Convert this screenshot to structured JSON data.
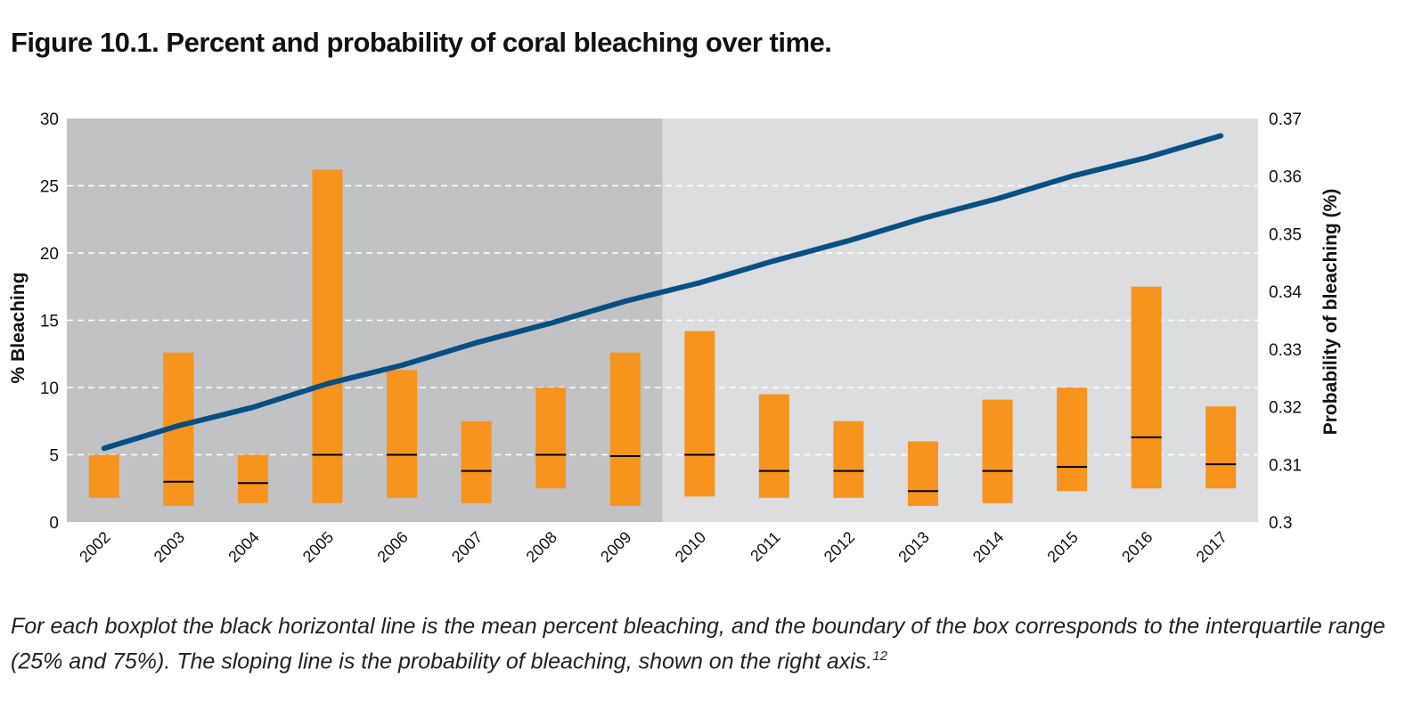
{
  "figure": {
    "title": "Figure 10.1. Percent and probability of coral bleaching over time.",
    "caption": "For each boxplot the black horizontal line is the mean percent bleaching, and the boundary of the box corresponds to the interquartile range (25% and 75%). The sloping line is the probability of bleaching, shown on the right axis.",
    "caption_ref": "12"
  },
  "chart_data": {
    "type": "boxplot+line",
    "title": "",
    "categories": [
      "2002",
      "2003",
      "2004",
      "2005",
      "2006",
      "2007",
      "2008",
      "2009",
      "2010",
      "2011",
      "2012",
      "2013",
      "2014",
      "2015",
      "2016",
      "2017"
    ],
    "ylabel": "% Bleaching",
    "ylim": [
      0,
      30
    ],
    "yticks": [
      "0",
      "5",
      "10",
      "15",
      "20",
      "25",
      "30"
    ],
    "y2label": "Probability of bleaching (%)",
    "y2lim": [
      0.3,
      0.37
    ],
    "y2ticks": [
      "0.3",
      "0.31",
      "0.32",
      "0.33",
      "0.34",
      "0.35",
      "0.36",
      "0.37"
    ],
    "boxes": {
      "q1": [
        1.8,
        1.2,
        1.4,
        1.4,
        1.8,
        1.4,
        2.5,
        1.2,
        1.9,
        1.8,
        1.8,
        1.2,
        1.4,
        2.3,
        2.5,
        2.5
      ],
      "q3": [
        5.0,
        12.6,
        5.0,
        26.2,
        11.3,
        7.5,
        10.0,
        12.6,
        14.2,
        9.5,
        7.5,
        6.0,
        9.1,
        10.0,
        17.5,
        8.6
      ],
      "mean": [
        null,
        3.0,
        2.9,
        5.0,
        5.0,
        3.8,
        5.0,
        4.9,
        5.0,
        3.8,
        3.8,
        2.3,
        3.8,
        4.1,
        6.3,
        4.3
      ]
    },
    "line": {
      "values": [
        0.3128,
        0.3167,
        0.3199,
        0.324,
        0.3272,
        0.3311,
        0.3345,
        0.3383,
        0.3415,
        0.3453,
        0.3488,
        0.3527,
        0.3561,
        0.36,
        0.3632,
        0.367
      ]
    },
    "shaded_region": [
      "2002",
      "2009"
    ],
    "grid": "horizontal dashed",
    "colors": {
      "box": "#F7941D",
      "mean_line": "#000000",
      "trend_line": "#004B7F",
      "bg_early": "#C1C2C4",
      "bg_late": "#DCDDDF",
      "grid": "#FFFFFF"
    }
  }
}
